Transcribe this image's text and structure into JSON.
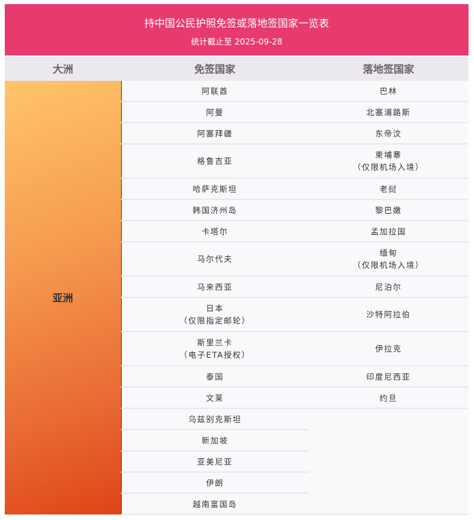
{
  "header": {
    "title": "持中国公民护照免签或落地签国家一览表",
    "subtitle": "统计截止至 2025-09-28"
  },
  "columns": [
    "大洲",
    "免签国家",
    "落地签国家"
  ],
  "continent": "亚洲",
  "rows": [
    {
      "visa_free": "阿联酋",
      "landing": "巴林"
    },
    {
      "visa_free": "阿曼",
      "landing": "北塞浦路斯"
    },
    {
      "visa_free": "阿塞拜疆",
      "landing": "东帝汶"
    },
    {
      "visa_free": "格鲁吉亚",
      "landing": "柬埔寨",
      "landing_note": "（仅限机场入境）"
    },
    {
      "visa_free": "哈萨克斯坦",
      "landing": "老挝"
    },
    {
      "visa_free": "韩国济州岛",
      "landing": "黎巴嫩"
    },
    {
      "visa_free": "卡塔尔",
      "landing": "孟加拉国"
    },
    {
      "visa_free": "马尔代夫",
      "landing": "缅甸",
      "landing_note": "（仅限机场入境）"
    },
    {
      "visa_free": "马来西亚",
      "landing": "尼泊尔"
    },
    {
      "visa_free": "日本",
      "visa_free_note": "（仅限指定邮轮）",
      "landing": "沙特阿拉伯"
    },
    {
      "visa_free": "斯里兰卡",
      "visa_free_note": "（电子ETA授权）",
      "landing": "伊拉克"
    },
    {
      "visa_free": "泰国",
      "landing": "印度尼西亚"
    },
    {
      "visa_free": "文莱",
      "landing": "约旦"
    },
    {
      "visa_free": "乌兹别克斯坦"
    },
    {
      "visa_free": "新加坡"
    },
    {
      "visa_free": "亚美尼亚"
    },
    {
      "visa_free": "伊朗"
    },
    {
      "visa_free": "越南富国岛"
    }
  ],
  "colors": {
    "banner": "#e73a6d",
    "header_bg": "#ece8ef",
    "cell_bg": "#f9f8fb"
  }
}
